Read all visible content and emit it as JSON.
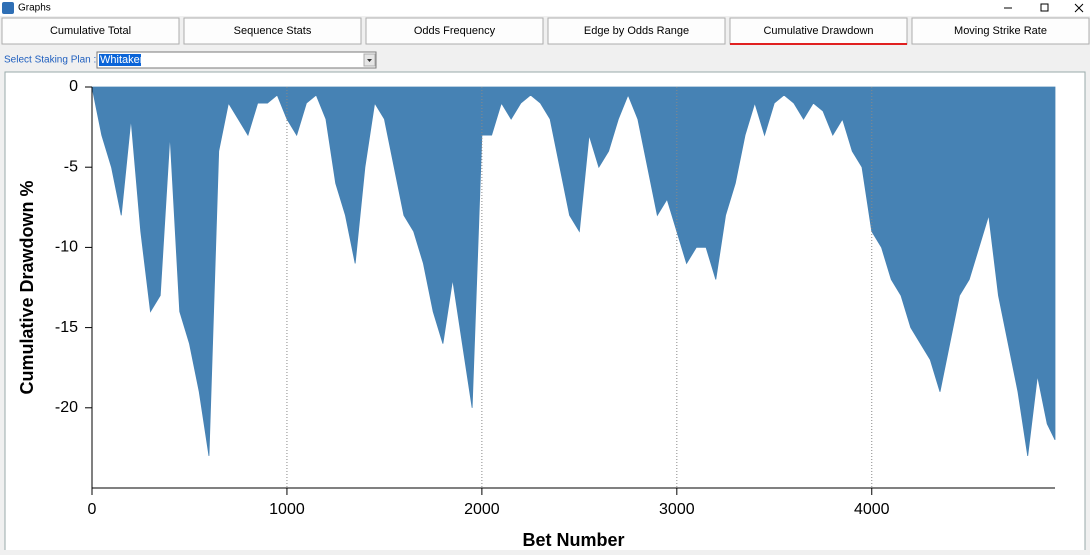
{
  "window": {
    "title": "Graphs"
  },
  "tabs": [
    "Cumulative Total",
    "Sequence Stats",
    "Odds Frequency",
    "Edge by Odds Range",
    "Cumulative Drawdown",
    "Moving Strike Rate"
  ],
  "active_tab": 4,
  "staking_plan": {
    "label": "Select Staking Plan :",
    "value": "Whitaker"
  },
  "chart_data": {
    "type": "area",
    "x_label": "Bet Number",
    "y_label": "Cumulative Drawdown %",
    "color": "#4682b4",
    "x": [
      0,
      50,
      100,
      150,
      200,
      250,
      300,
      350,
      400,
      450,
      500,
      550,
      600,
      650,
      700,
      750,
      800,
      850,
      900,
      950,
      1000,
      1050,
      1100,
      1150,
      1200,
      1250,
      1300,
      1350,
      1400,
      1450,
      1500,
      1550,
      1600,
      1650,
      1700,
      1750,
      1800,
      1850,
      1900,
      1950,
      2000,
      2050,
      2100,
      2150,
      2200,
      2250,
      2300,
      2350,
      2400,
      2450,
      2500,
      2550,
      2600,
      2650,
      2700,
      2750,
      2800,
      2850,
      2900,
      2950,
      3000,
      3050,
      3100,
      3150,
      3200,
      3250,
      3300,
      3350,
      3400,
      3450,
      3500,
      3550,
      3600,
      3650,
      3700,
      3750,
      3800,
      3850,
      3900,
      3950,
      4000,
      4050,
      4100,
      4150,
      4200,
      4250,
      4300,
      4350,
      4400,
      4450,
      4500,
      4550,
      4600,
      4650,
      4700,
      4750,
      4800,
      4850,
      4900,
      4940
    ],
    "values": [
      0,
      -3,
      -5,
      -8,
      -2,
      -9,
      -14,
      -13,
      -3,
      -14,
      -16,
      -19,
      -23,
      -4,
      -1,
      -2,
      -3,
      -1,
      -1,
      -0.5,
      -2,
      -3,
      -1,
      -0.5,
      -2,
      -6,
      -8,
      -11,
      -5,
      -1,
      -2,
      -5,
      -8,
      -9,
      -11,
      -14,
      -16,
      -12,
      -16,
      -20,
      -3,
      -3,
      -1,
      -2,
      -1,
      -0.5,
      -1,
      -2,
      -5,
      -8,
      -9,
      -3,
      -5,
      -4,
      -2,
      -0.5,
      -2,
      -5,
      -8,
      -7,
      -9,
      -11,
      -10,
      -10,
      -12,
      -8,
      -6,
      -3,
      -1,
      -3,
      -1,
      -0.5,
      -1,
      -2,
      -1,
      -1.5,
      -3,
      -2,
      -4,
      -5,
      -9,
      -10,
      -12,
      -13,
      -15,
      -16,
      -17,
      -19,
      -16,
      -13,
      -12,
      -10,
      -8,
      -13,
      -16,
      -19,
      -23,
      -18,
      -21,
      -22
    ],
    "xlim": [
      0,
      4940
    ],
    "ylim": [
      -25,
      0
    ],
    "xticks": [
      0,
      1000,
      2000,
      3000,
      4000
    ],
    "yticks": [
      0,
      -5,
      -10,
      -15,
      -20
    ],
    "grid": "x"
  }
}
